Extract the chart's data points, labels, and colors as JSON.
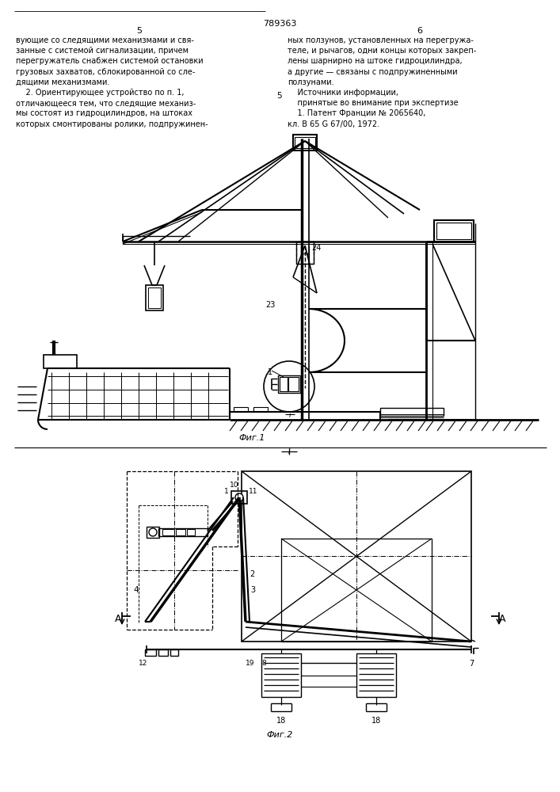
{
  "page_width": 7.07,
  "page_height": 10.0,
  "bg_color": "#ffffff",
  "lc": "#000000",
  "patent_num": "789363",
  "page_left": "5",
  "page_right": "6",
  "left_text": [
    "вующие со следящими механизмами и свя-",
    "занные с системой сигнализации, причем",
    "перегружатель снабжен системой остановки",
    "грузовых захватов, сблокированной со сле-",
    "дящими механизмами.",
    "    2. Ориентирующее устройство по п. 1,",
    "отличающееся тем, что следящие механиз-",
    "мы состоят из гидроцилиндров, на штоках",
    "которых смонтированы ролики, подпружинен-"
  ],
  "right_text": [
    "ных ползунов, установленных на перегружа-",
    "теле, и рычагов, одни концы которых закреп-",
    "лены шарнирно на штоке гидроцилиндра,",
    "а другие — связаны с подпружиненными",
    "ползунами.",
    "    Источники информации,",
    "    принятые во внимание при экспертизе",
    "    1. Патент Франции № 2065640,",
    "кл. B 65 G 67/00, 1972."
  ],
  "fig1_label": "Фиг.1",
  "fig2_label": "Фиг.2"
}
